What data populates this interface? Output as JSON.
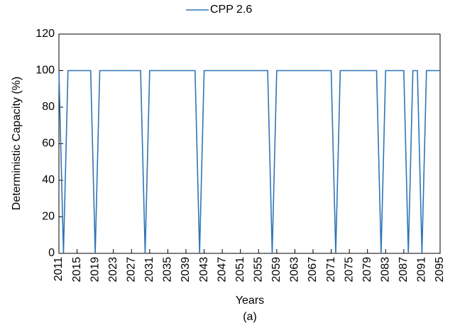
{
  "chart_data": {
    "type": "line",
    "xlabel": "Years",
    "ylabel": "Deterministic Capacity (%)",
    "caption": "(a)",
    "x": [
      2011,
      2012,
      2013,
      2014,
      2015,
      2016,
      2017,
      2018,
      2019,
      2020,
      2021,
      2022,
      2023,
      2024,
      2025,
      2026,
      2027,
      2028,
      2029,
      2030,
      2031,
      2032,
      2033,
      2034,
      2035,
      2036,
      2037,
      2038,
      2039,
      2040,
      2041,
      2042,
      2043,
      2044,
      2045,
      2046,
      2047,
      2048,
      2049,
      2050,
      2051,
      2052,
      2053,
      2054,
      2055,
      2056,
      2057,
      2058,
      2059,
      2060,
      2061,
      2062,
      2063,
      2064,
      2065,
      2066,
      2067,
      2068,
      2069,
      2070,
      2071,
      2072,
      2073,
      2074,
      2075,
      2076,
      2077,
      2078,
      2079,
      2080,
      2081,
      2082,
      2083,
      2084,
      2085,
      2086,
      2087,
      2088,
      2089,
      2090,
      2091,
      2092,
      2093,
      2094,
      2095
    ],
    "series": [
      {
        "name": "CPP 2.6",
        "color": "#2e75b6",
        "values": [
          100,
          0,
          100,
          100,
          100,
          100,
          100,
          100,
          0,
          100,
          100,
          100,
          100,
          100,
          100,
          100,
          100,
          100,
          100,
          0,
          100,
          100,
          100,
          100,
          100,
          100,
          100,
          100,
          100,
          100,
          100,
          0,
          100,
          100,
          100,
          100,
          100,
          100,
          100,
          100,
          100,
          100,
          100,
          100,
          100,
          100,
          100,
          0,
          100,
          100,
          100,
          100,
          100,
          100,
          100,
          100,
          100,
          100,
          100,
          100,
          100,
          0,
          100,
          100,
          100,
          100,
          100,
          100,
          100,
          100,
          100,
          0,
          100,
          100,
          100,
          100,
          100,
          0,
          100,
          100,
          0,
          100,
          100,
          100,
          100
        ]
      }
    ],
    "xlim": [
      2011,
      2095
    ],
    "xticks": [
      2011,
      2015,
      2019,
      2023,
      2027,
      2031,
      2035,
      2039,
      2043,
      2047,
      2051,
      2055,
      2059,
      2063,
      2067,
      2071,
      2075,
      2079,
      2083,
      2087,
      2091,
      2095
    ],
    "ylim": [
      0,
      120
    ],
    "yticks": [
      0,
      20,
      40,
      60,
      80,
      100,
      120
    ],
    "legend": "top",
    "grid": false
  }
}
